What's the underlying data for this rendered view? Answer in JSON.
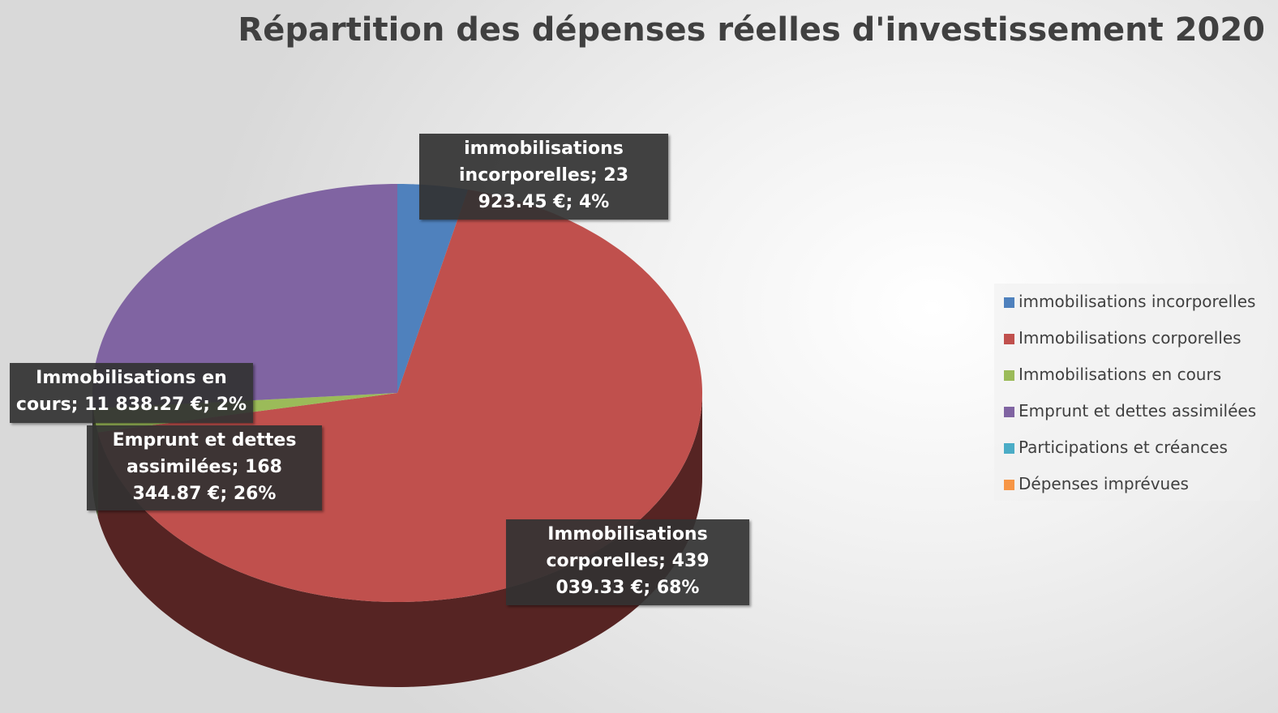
{
  "chart_data": {
    "type": "pie3d",
    "title": "Répartition des dépenses réelles d'investissement 2020",
    "categories": [
      "immobilisations incorporelles",
      "Immobilisations corporelles",
      "Immobilisations en cours",
      "Emprunt et dettes  assimilées",
      "Participations et créances",
      "Dépenses imprévues"
    ],
    "values": [
      23923.45,
      439039.33,
      11838.27,
      168344.87,
      0,
      0
    ],
    "value_labels": [
      "immobilisations incorporelles; 23 923.45 €; 4%",
      "Immobilisations corporelles; 439 039.33 €; 68%",
      "Immobilisations en cours; 11 838.27 €; 2%",
      "Emprunt et dettes assimilées; 168 344.87 €; 26%",
      null,
      null
    ],
    "colors": [
      "#4f81bd",
      "#c0504d",
      "#9bbb59",
      "#8064a2",
      "#4bacc6",
      "#f79646"
    ],
    "legend": "right"
  }
}
